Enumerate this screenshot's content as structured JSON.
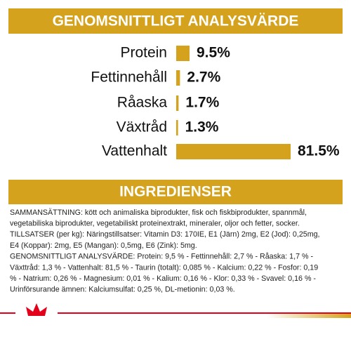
{
  "chart_data": {
    "type": "bar",
    "orientation": "horizontal",
    "title": "GENOMSNITTLIGT ANALYSVÄRDE",
    "categories": [
      "Protein",
      "Fettinnehåll",
      "Råaska",
      "Växtråd",
      "Vattenhalt"
    ],
    "values": [
      9.5,
      2.7,
      1.7,
      1.3,
      81.5
    ],
    "value_labels": [
      "9.5%",
      "2.7%",
      "1.7%",
      "1.3%",
      "81.5%"
    ],
    "color": "#d4a21c"
  },
  "ingredients": {
    "title": "INGREDIENSER",
    "lines": [
      "SAMMANSÄTTNING: kött och animaliska biprodukter, fisk och fiskbiprodukter, spannmål,",
      "vegetabiliska biprodukter, vegetabiliskt proteinextrakt, mineraler, oljor och fetter, socker.",
      "TILLSATSER (per kg): Näringstillsatser: Vitamin D3: 170IE, E1 (Järn) 2mg, E2 (Jod): 0,25mg,",
      "E4 (Koppar): 2mg, E5 (Mangan): 0,5mg, E6 (Zink): 5mg.",
      "GENOMSNITTLIGT ANALYSVÄRDE: Protein: 9,5 % - Fettinnehåll: 2,7 % - Råaska: 1,7 % -",
      "Växttråd: 1,3 % - Vattenhalt: 81,5 % - Taurin (totalt): 0,085 % - Kalcium: 0,22 % - Fosfor: 0,19",
      "% - Natrium: 0,26 % - Magnesium: 0,01 % - Kalium: 0,16 % - Klor: 0,33 % - Svavel: 0,16 % -",
      "Urinförsurande ämnen: Kalciumsulfat: 0,25 %, DL-metionin: 0,03 %."
    ]
  }
}
